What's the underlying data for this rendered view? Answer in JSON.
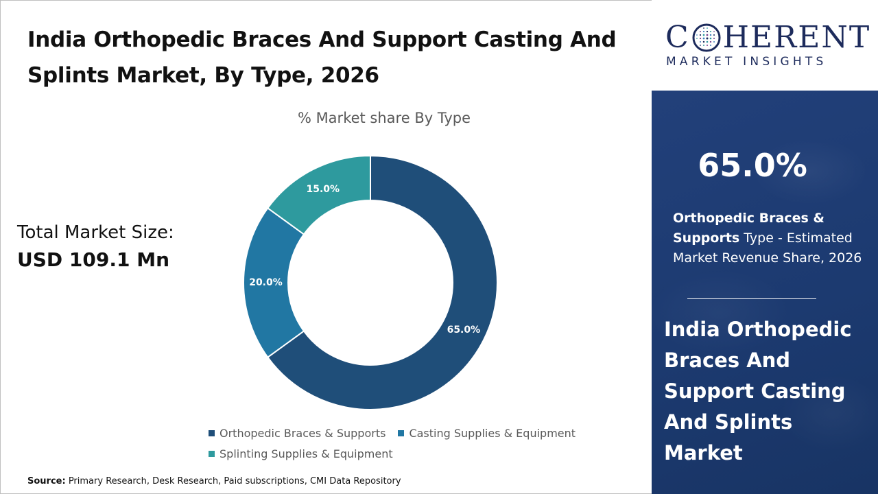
{
  "title": "India Orthopedic Braces And Support Casting And Splints Market, By Type, 2026",
  "total": {
    "label": "Total Market Size:",
    "value": "USD 109.1 Mn"
  },
  "source": {
    "label": "Source:",
    "text": " Primary Research, Desk Research, Paid subscriptions, CMI Data Repository"
  },
  "logo": {
    "line1_left": "C",
    "line1_right": "HERENT",
    "line2": "MARKET INSIGHTS"
  },
  "side": {
    "big_pct": "65.0%",
    "desc_bold": "Orthopedic Braces & Supports",
    "desc_rest": " Type - Estimated Market Revenue Share, 2026",
    "title": "India Orthopedic Braces And Support Casting And Splints Market"
  },
  "chart_data": {
    "type": "pie",
    "title": "% Market share By Type",
    "donut": true,
    "unit": "%",
    "categories": [
      "Orthopedic Braces & Supports",
      "Casting Supplies & Equipment",
      "Splinting Supplies & Equipment"
    ],
    "values": [
      65.0,
      20.0,
      15.0
    ],
    "labels": [
      "65.0%",
      "20.0%",
      "15.0%"
    ],
    "colors": [
      "#1f4e79",
      "#2177a3",
      "#2e9a9e"
    ],
    "label_colors": [
      "#ffffff",
      "#ffffff",
      "#ffffff"
    ],
    "legend_position": "bottom"
  }
}
